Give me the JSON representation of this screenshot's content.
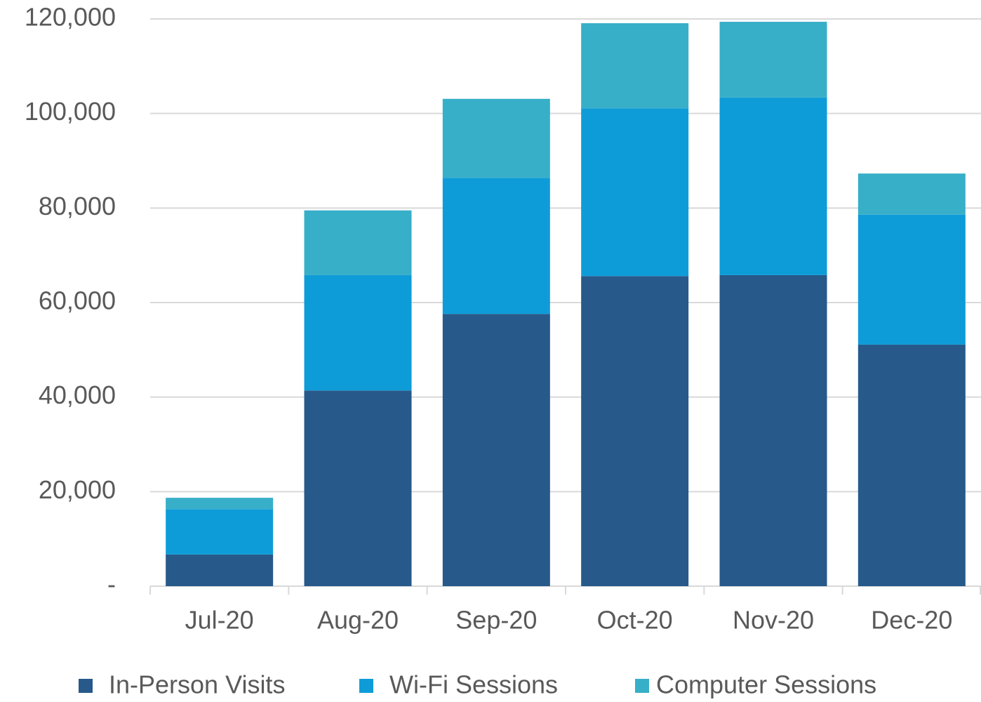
{
  "chart_data": {
    "type": "stacked_bar",
    "categories": [
      "Jul-20",
      "Aug-20",
      "Sep-20",
      "Oct-20",
      "Nov-20",
      "Dec-20"
    ],
    "series": [
      {
        "name": "In-Person Visits",
        "color": "#27598a",
        "values": [
          6700,
          41400,
          57600,
          65600,
          65800,
          51100
        ]
      },
      {
        "name": "Wi-Fi Sessions",
        "color": "#0e9cd8",
        "values": [
          9600,
          24400,
          28800,
          35500,
          37600,
          27500
        ]
      },
      {
        "name": "Computer Sessions",
        "color": "#38afc8",
        "values": [
          2400,
          13700,
          16700,
          18000,
          16000,
          8700
        ]
      }
    ],
    "ylim": [
      0,
      120000
    ],
    "yticks": [
      {
        "value": 0,
        "label": "-"
      },
      {
        "value": 20000,
        "label": "20,000"
      },
      {
        "value": 40000,
        "label": "40,000"
      },
      {
        "value": 60000,
        "label": "60,000"
      },
      {
        "value": 80000,
        "label": "80,000"
      },
      {
        "value": 100000,
        "label": "100,000"
      },
      {
        "value": 120000,
        "label": "120,000"
      }
    ],
    "grid": true,
    "legend": "bottom"
  }
}
